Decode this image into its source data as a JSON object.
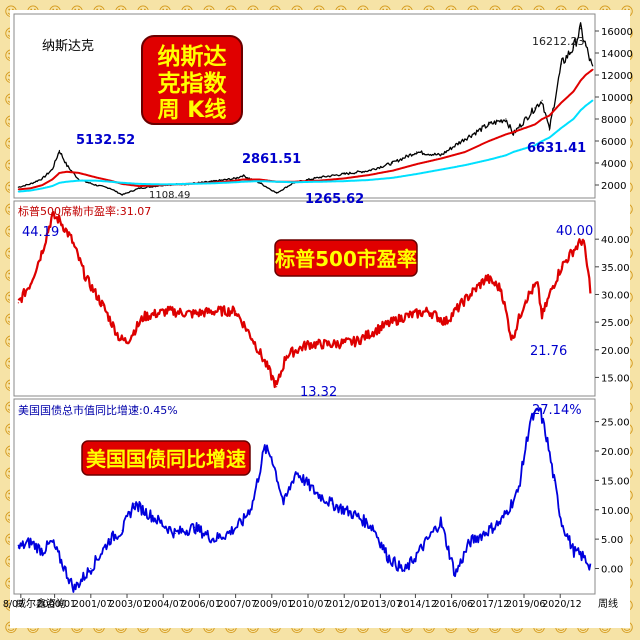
{
  "colors": {
    "frame_pattern": "#e6b43c",
    "nasdaq_line": "#000000",
    "ma_red": "#e00000",
    "ma_cyan": "#00e0ff",
    "pe_line": "#dd0000",
    "bond_line": "#0000dd",
    "peak_label": "#0000cc",
    "banner_bg": "#e00000",
    "banner_text": "#ffff00"
  },
  "panel1": {
    "corner_title": "纳斯达克",
    "banner_line1": "纳斯达",
    "banner_line2": "克指数",
    "banner_line3": "周 K线",
    "peak_label": "16212.23",
    "annotations": [
      "5132.52",
      "1108.49",
      "2861.51",
      "1265.62",
      "6631.41"
    ]
  },
  "panel2": {
    "indicator_label": "标普500席勒市盈率:31.07",
    "banner": "标普500市盈率",
    "annotations": [
      "44.19",
      "13.32",
      "21.76",
      "40.00"
    ]
  },
  "panel3": {
    "indicator_label": "美国国债总市值同比增速:0.45%",
    "banner": "美国国债同比增速",
    "annotations": [
      "27.14%"
    ]
  },
  "footer": {
    "source": "威尔鑫咨询",
    "period_label": "周线",
    "date_ticks": [
      "8/07",
      "2000/01",
      "2001/07",
      "2003/01",
      "2004/07",
      "2006/01",
      "2007/07",
      "2009/01",
      "2010/07",
      "2012/01",
      "2013/07",
      "2014/12",
      "2016/06",
      "2017/12",
      "2019/06",
      "2020/12"
    ]
  },
  "chart_data": [
    {
      "type": "line",
      "title": "纳斯达克",
      "x": [
        1998.5,
        1999.0,
        1999.5,
        1999.9,
        2000.2,
        2000.5,
        2001.0,
        2001.7,
        2002.3,
        2002.8,
        2003.5,
        2004.5,
        2005.5,
        2006.5,
        2007.5,
        2007.8,
        2008.5,
        2009.2,
        2009.9,
        2011.0,
        2012.0,
        2013.0,
        2014.0,
        2015.0,
        2016.0,
        2017.0,
        2018.0,
        2018.7,
        2019.0,
        2019.9,
        2020.2,
        2020.5,
        2021.0,
        2021.5,
        2021.8,
        2022.0,
        2022.3
      ],
      "series": [
        {
          "name": "",
          "values": [
            1800,
            2100,
            2600,
            3400,
            5132.52,
            3800,
            2500,
            2000,
            1700,
            1108.49,
            1700,
            2000,
            2100,
            2300,
            2600,
            2861.51,
            2200,
            1265.62,
            2200,
            2700,
            3000,
            3300,
            4000,
            5000,
            4700,
            6200,
            7500,
            8000,
            6631.41,
            9000,
            9700,
            7000,
            13000,
            14500,
            16212.23,
            14700,
            12500
          ]
        },
        {
          "name": "",
          "values": [
            1600,
            1700,
            2000,
            2500,
            3100,
            3200,
            3100,
            2700,
            2400,
            2100,
            1900,
            2000,
            2100,
            2200,
            2400,
            2500,
            2500,
            2300,
            2300,
            2400,
            2600,
            2900,
            3300,
            3900,
            4400,
            5000,
            6000,
            6600,
            6800,
            7500,
            8000,
            8300,
            9500,
            10500,
            11500,
            12000,
            12500
          ]
        },
        {
          "name": "",
          "values": [
            1400,
            1500,
            1700,
            1900,
            2200,
            2300,
            2400,
            2400,
            2300,
            2200,
            2100,
            2050,
            2100,
            2150,
            2250,
            2300,
            2350,
            2300,
            2250,
            2300,
            2350,
            2450,
            2650,
            3000,
            3400,
            3800,
            4300,
            4700,
            5000,
            5600,
            6000,
            6300,
            7200,
            8000,
            8800,
            9200,
            9700
          ]
        }
      ],
      "ylim": [
        1000,
        17000
      ],
      "yticks": [
        2000,
        4000,
        6000,
        8000,
        10000,
        12000,
        14000,
        16000
      ]
    },
    {
      "type": "line",
      "title": "标普500席勒市盈率",
      "x": [
        1998.5,
        1999.0,
        1999.5,
        1999.9,
        2000.2,
        2000.7,
        2001.3,
        2002.0,
        2002.7,
        2003.0,
        2003.7,
        2004.7,
        2005.7,
        2006.7,
        2007.5,
        2008.2,
        2008.8,
        2009.2,
        2009.6,
        2010.5,
        2011.5,
        2012.5,
        2013.5,
        2014.5,
        2015.5,
        2016.2,
        2017.0,
        2017.9,
        2018.5,
        2018.95,
        2019.5,
        2020.0,
        2020.2,
        2020.6,
        2021.0,
        2021.5,
        2021.9,
        2022.2
      ],
      "series": [
        {
          "name": "",
          "values": [
            28.5,
            32,
            38,
            44.19,
            43.5,
            40,
            33,
            28,
            22,
            21.5,
            26,
            27,
            26.5,
            27,
            27,
            22,
            17,
            13.32,
            19,
            21,
            21,
            21.5,
            24,
            26,
            27,
            25,
            29,
            33,
            31,
            21.76,
            29,
            32,
            26,
            31,
            35,
            38,
            40.0,
            31.07
          ]
        }
      ],
      "ylim": [
        12,
        46
      ],
      "yticks": [
        15,
        20,
        25,
        30,
        35,
        40
      ]
    },
    {
      "type": "line",
      "title": "美国国债总市值同比增速",
      "x": [
        1998.5,
        1999.0,
        1999.5,
        1999.9,
        2000.3,
        2000.8,
        2001.5,
        2002.3,
        2002.8,
        2003.3,
        2004.0,
        2005.0,
        2005.8,
        2006.6,
        2007.2,
        2007.8,
        2008.2,
        2008.7,
        2009.0,
        2009.5,
        2010.0,
        2010.8,
        2011.5,
        2012.5,
        2013.2,
        2013.8,
        2014.5,
        2015.3,
        2016.0,
        2016.6,
        2017.2,
        2017.8,
        2018.5,
        2019.2,
        2019.7,
        2020.1,
        2020.4,
        2020.7,
        2021.0,
        2021.5,
        2021.9,
        2022.2
      ],
      "series": [
        {
          "name": "",
          "values": [
            3.5,
            4.5,
            3,
            4.5,
            1,
            -3.5,
            0,
            5,
            6.5,
            11,
            9,
            6,
            7,
            5,
            6,
            8,
            11,
            20.5,
            19,
            11,
            16.5,
            13,
            11,
            9,
            7,
            2,
            -0.5,
            4,
            8,
            -1,
            4.5,
            6,
            8,
            13,
            25,
            27.14,
            22,
            15,
            8,
            3,
            2,
            0.45
          ]
        }
      ],
      "ylim": [
        -4,
        28
      ],
      "yticks": [
        0,
        5,
        10,
        15,
        20,
        25
      ]
    }
  ]
}
